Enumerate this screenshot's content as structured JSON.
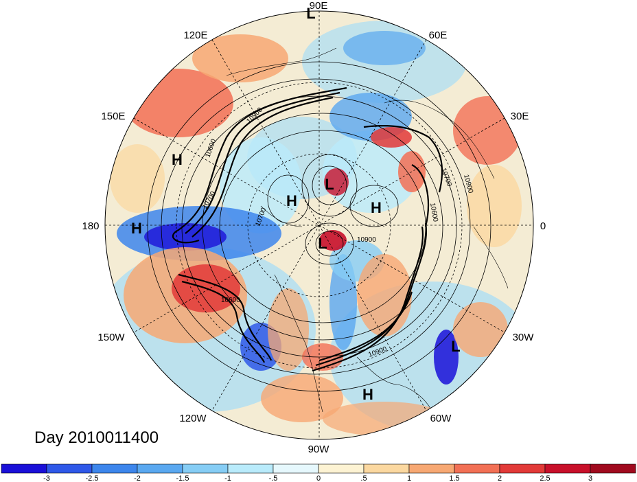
{
  "map": {
    "projection": "north-polar-stereographic",
    "longitude_labels": [
      "90E",
      "60E",
      "30E",
      "0",
      "30W",
      "60W",
      "90W",
      "120W",
      "150W",
      "180",
      "150E",
      "120E"
    ],
    "pressure_centers": [
      "L",
      "H",
      "H",
      "L",
      "H",
      "L",
      "H",
      "L",
      "H"
    ],
    "contour_labels": [
      "10700",
      "10900",
      "10600",
      "10700",
      "10900",
      "10900",
      "10600",
      "10700",
      "10600",
      "10900"
    ]
  },
  "date_label": "Day 2010011400",
  "colorbar": {
    "ticks": [
      "-3",
      "-2.5",
      "-2",
      "-1.5",
      "-1",
      "-.5",
      "0",
      ".5",
      "1",
      "1.5",
      "2",
      "2.5",
      "3"
    ],
    "colors": [
      "#1a10d8",
      "#2f58e8",
      "#3d86ec",
      "#5aa8f0",
      "#86cdf5",
      "#b9ebfb",
      "#e6f8fd",
      "#fdf3d3",
      "#fbd8a0",
      "#f7a873",
      "#f27055",
      "#e23a38",
      "#c8102a",
      "#a00a1e"
    ]
  }
}
